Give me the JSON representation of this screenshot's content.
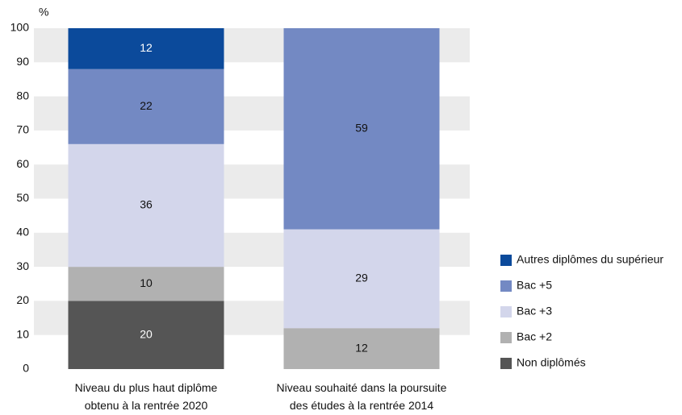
{
  "chart_data": {
    "type": "stacked_bar",
    "y_unit": "%",
    "categories": [
      "Niveau du plus haut diplôme\nobtenu à la rentrée 2020",
      "Niveau souhaité dans la poursuite\ndes études à la rentrée 2014"
    ],
    "series": [
      {
        "name": "Non diplômés",
        "color": "#555555",
        "label_color": "#ffffff",
        "values": [
          20,
          null
        ]
      },
      {
        "name": "Bac +2",
        "color": "#b1b1b1",
        "label_color": "#111111",
        "values": [
          10,
          12
        ]
      },
      {
        "name": "Bac +3",
        "color": "#d3d6eb",
        "label_color": "#111111",
        "values": [
          36,
          29
        ]
      },
      {
        "name": "Bac +5",
        "color": "#7389c3",
        "label_color": "#111111",
        "values": [
          22,
          59
        ]
      },
      {
        "name": "Autres diplômes du supérieur",
        "color": "#0b4a9b",
        "label_color": "#ffffff",
        "values": [
          12,
          null
        ]
      }
    ],
    "ylim": [
      0,
      100
    ],
    "yticks": [
      0,
      10,
      20,
      30,
      40,
      50,
      60,
      70,
      80,
      90,
      100
    ],
    "grid": "banded",
    "legend": "right"
  }
}
